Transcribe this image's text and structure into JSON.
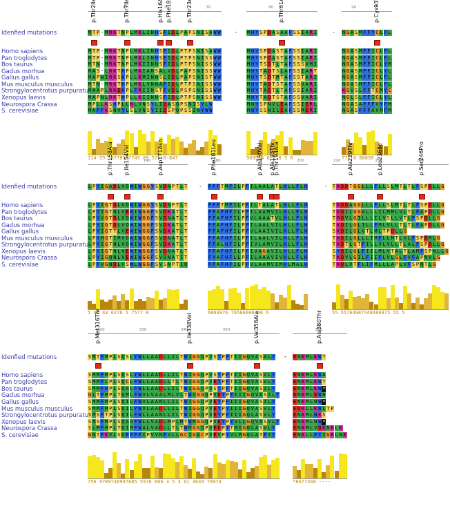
{
  "species_labels": [
    "Idenfied mutations",
    "Homo sapiens",
    "Pan troglodytes",
    "Bos taurus",
    "Gadus morhua",
    "Gallus gallus",
    "Mus musculus musculus",
    "Strongylocentrotus purpuratus",
    "Xenopus laevis",
    "Neurospora Crassa",
    "S. cerevisiae"
  ],
  "colors": {
    "hydrophobic": "#3aa84a",
    "polar": "#2e6ee0",
    "special_orange": "#e89a2a",
    "acidic": "#d6302a",
    "basic": "#cc3399",
    "other": "#f2d35c",
    "marker": "#e02b1b",
    "label": "#3a3aa8",
    "conservation_high": "#f5e61e",
    "conservation_low": "#b8860b"
  },
  "panels": [
    {
      "id": "panel-1",
      "blocks": [
        {
          "id": "b1",
          "ticks": [
            "10",
            "20",
            "30"
          ],
          "mutations": [
            "p.Thr2Ile",
            "p.Thr7Ile",
            "p.His16Arg",
            "p.Phe18Leu",
            "p.Thr23Ala"
          ],
          "rows": [
            "MTP-MRKTNPLMKLINHSFIDLPAPSNISAWW",
            "MTP-MRKTNPLMKLINHSFIDLPTPSNISAWW",
            "MTP-MRKTNPLMKLINHSFIDLPTPSNISSWW",
            "MTN-MRKTNPLMKIINNSFIDLPTPSNISSWW",
            "MAS-LRKTHPLMKIANSALVDLPAPSNISSWW",
            "MAPNIRKSHPLLKMINNSLIDLPAPSNISTWW",
            "MTN-MRKTHPLMKLVNNAFIDLPTPSNISSWW",
            "MAAPLRKEHPLFRIINSTFVDLPSPSNISSWW",
            "MAPNLRKTHPLLKIINNSFIDLPTPSNISSWW",
            "MPLLKSHPLLKLVNSYLIDASQPSNISYLW",
            "MAFFKSNVYLSLVNSYIIDSPQPSSINYWW"
          ],
          "conservation_labels": "114-55 36778597745 89 575 8-847"
        },
        {
          "id": "b2",
          "ticks": [
            "60"
          ],
          "mutations": [
            "p.Thr61Ala"
          ],
          "rows": [
            "MHYSPDASAAFSSIARI",
            "MHYSPDASTAFSSIARI",
            "MHYSPDASTAFSSIARI",
            "MHYTSDTLTAFSSSVMI",
            "MHYTADTSLAFSSIART",
            "MHYTSDTMTAFSSTARI",
            "MHYTADTSTAFSSVARI",
            "MHYTADTLTAFSSIARI",
            "MHYTADTSTAFSSVARI",
            "MNYSPNVLEAFSSIERL",
            "MHYSSNILEAFSSMERI"
          ],
          "conservation_labels": "969534 8 7 8 3 6"
        },
        {
          "id": "b3",
          "ticks": [
            "90"
          ],
          "mutations": [
            "p.Cys93Tyr"
          ],
          "rows": [
            "NGASMFFYCLFL",
            "NGASMFFICLFL",
            "NGASMFFICLFL",
            "NGASMFFICLYM",
            "NGASMFFICLYL",
            "NGASMFFICLFL",
            "NGASMFFICLFL",
            "KGVSLFFTCMYC",
            "NGLSLFFICLYL",
            "NGASAFFFVYFM",
            "NGASFFFAVMFM"
          ],
          "conservation_labels": "777 6 88838"
        }
      ]
    },
    {
      "id": "panel-2",
      "blocks": [
        {
          "id": "b4",
          "ticks": [
            "140"
          ],
          "mutations": [
            "p.Thr158Ala",
            "p.Ile154Val",
            "p.Asp171Asn"
          ],
          "rows": [
            "LPYIGADLVQWIWGGYSVDNPTLT",
            "LPYIGTDLVQWIWGGYSVDNPTLT",
            "LPYIGTNLVEWIWGGFSVDKATLT",
            "LPYVGTDLVQWIWGGFSVDNATLT",
            "LPYIGTDLVQWIWGGFSVDKATLT",
            "LPYIGTTLVEWIWGGFSVDKATLT",
            "LPYMGTIMVQWIWGGFSVDNATLT",
            "LPYIGTNLVQWIWGGFSVDKATLT",
            "LPYIGTNLVEWIWGGFSVDNATLT",
            "LPYIGQNLVEWIWGGFSVQNATIT",
            "LPFVGNDLVSWLWGGFSVSNPTIQ"
          ],
          "conservation_labels": "5 96 43 6276 5 7577 8"
        },
        {
          "id": "b5",
          "ticks": [
            "180",
            "190",
            "200"
          ],
          "mutations": [
            "p.Phe181Leu",
            "p.Ala190Val",
            "p.Ala193Thr",
            "p.Thr194Ala"
          ],
          "rows": [
            "FFFTMFILPFILAALATLHLLFLH",
            "FFFTMFILPFILTALATLHLLFLH",
            "FFAFHFILPFILAAMVILHLLFLH",
            "FFAFHFILPFVLAAATVLHLLFLH",
            "FFAFHFILPFILAALVILHLLFLH",
            "FFAFHFILPFVLAAIVILHLLFLH",
            "FFAFHFILPFILAALVILHLLFLH",
            "FFALHFILPFIVLAMVILHLLFLH",
            "FFAFHFILPFIVAGAVILHLLFLH",
            "FYAFHFLLPFILAAAVIVHLLFLH",
            "FFAFHFILPFVLAAMVIMHLMALH"
          ],
          "conservation_labels": "6889976 76586688 86 6"
        },
        {
          "id": "b6",
          "ticks": [
            "220",
            "230",
            "240"
          ],
          "mutations": [
            "p.Ala229Thr",
            "p.Leu236Ile",
            "p.Ser246Pro"
          ],
          "rows": [
            "TKDDTGGLLLFLLSLMTLTLFSPDLLG",
            "TKDDAGGLLLFLLSLMTLTLFSPDLLG",
            "TKDILGGALLLILMMLVLTLFAPDLLG",
            "TRDVLGILLLILVSLLVTLFSPDLLG",
            "TKDILGLILLFMLVLLTLTLFAPDLLG",
            "SKDILGLVTLMLTPDLLG",
            "TKDILGLLLIMFLLMTLVLFSPDMLG",
            "TKDTLGTFILLVLVLLTLALFSPDLLG",
            "SYDILGLFIILMLVTALTLAMFSPNLLG",
            "TKDVLGILFIIFLVLGLFVFAPNVLG",
            "TKDLVTFLIFMLLLAPLVFSPNTLG"
          ],
          "conservation_labels": "55 55764987448466875 55 5"
        }
      ]
    },
    {
      "id": "panel-3",
      "blocks": [
        {
          "id": "b7",
          "ticks": [
            "320",
            "330",
            "340",
            "350"
          ],
          "mutations": [
            "p.Met316Thr",
            "p.Ile338Val",
            "p.Val356Ala"
          ],
          "rows": [
            "SMTFMPLSQSLYWLLAADLLILTWIGGQPVSYPFTIIGQVASALY",
            "SMMFMPLSQSLYWLLAADLLILTWIGGQPVSYPFTIIGQVASVLY",
            "SMMFLPLSQCLFWLLAADLLTLTWIGGQPVEYPFTIIGQVASVLY",
            "SMMFHPLSQALFWLLAADLLILTWIGGQPVSYPFTIIGQVASILY",
            "GLTFMPLTQMLFWVLVAALMLVLTWVGGQPVEYPFIIIGQVASILY",
            "SMMFMPLSQILFWVLAANLLILTWIGGQPVEYPFIIIGQVASILY",
            "SMMFMPLSQILYWVLAADLLILTWIGGQPVEYPYIIIGQVASVLY",
            "SMSFTPLSQILFWLLAANLLILTWIGGQPVEYPFIIIGQLASVLY",
            "SNSFMPLSQAAFWLLVADLMPLMTWMGGQPVEYPYVLLGQVASVLY",
            "SLMFMPLTQIMFWALVADLLTLTWMGGQPVEDPYTMIGQLASVLY",
            "GNTFKVLSQFFFFIPVVNFVLLGCIGACPVEVPYVLMGQLATFIY"
          ],
          "conservation_labels": "756 9789746997885 5576 666 3 5 3 61 3649 78974"
        },
        {
          "id": "b8",
          "ticks": [
            "380"
          ],
          "mutations": [
            "p.Ala380Thr"
          ],
          "rows": [
            "ENKMLKWT",
            "ENKMLKWA",
            "ENKMLKWT",
            "ENKMLKW*",
            "ENKMLEWN",
            "ENKMLNW*",
            "EDKLLKWLTP",
            "ENKMLHKS",
            "ENKMLNW*",
            "ENKMLVDKNKLK",
            "ENKLLFYIGKLNK"
          ],
          "conservation_labels": "*8477340 ----"
        }
      ]
    }
  ]
}
